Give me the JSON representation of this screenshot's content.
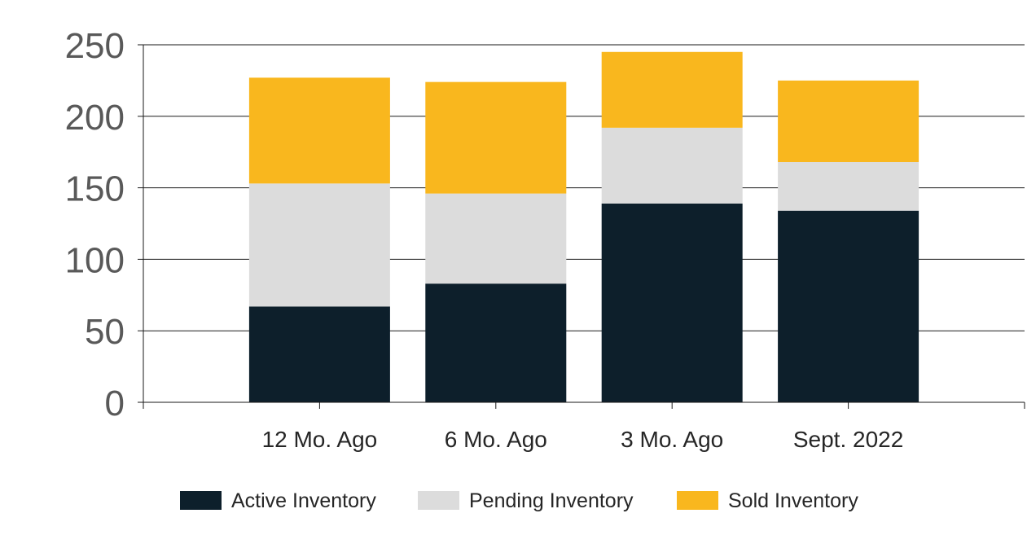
{
  "chart_data": {
    "type": "bar",
    "stacked": true,
    "categories": [
      "12 Mo. Ago",
      "6 Mo. Ago",
      "3 Mo. Ago",
      "Sept. 2022"
    ],
    "series": [
      {
        "name": "Active Inventory",
        "color": "#0d1f2b",
        "values": [
          67,
          83,
          139,
          134
        ]
      },
      {
        "name": "Pending Inventory",
        "color": "#dcdcdc",
        "values": [
          86,
          63,
          53,
          34
        ]
      },
      {
        "name": "Sold Inventory",
        "color": "#f9b71e",
        "values": [
          74,
          78,
          53,
          57
        ]
      }
    ],
    "yticks": [
      "0",
      "50",
      "100",
      "150",
      "200",
      "250"
    ],
    "ylim": [
      0,
      250
    ],
    "grid": true,
    "legend": "bottom"
  }
}
